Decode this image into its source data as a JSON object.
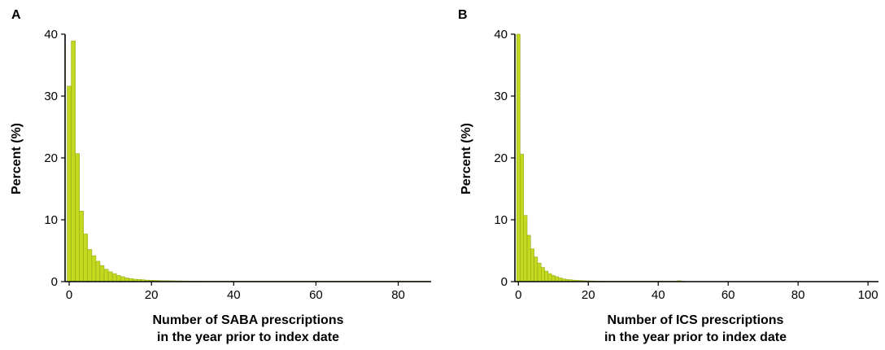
{
  "chart_data": [
    {
      "type": "bar",
      "panel_label": "A",
      "xlabel": [
        "Number of SABA prescriptions",
        "in the year prior to index date"
      ],
      "ylabel": "Percent (%)",
      "xlim": [
        -1,
        88
      ],
      "ylim": [
        0,
        40
      ],
      "xticks": [
        0,
        20,
        40,
        60,
        80
      ],
      "yticks": [
        0,
        10,
        20,
        30,
        40
      ],
      "x": [
        0,
        1,
        2,
        3,
        4,
        5,
        6,
        7,
        8,
        9,
        10,
        11,
        12,
        13,
        14,
        15,
        16,
        17,
        18,
        19,
        20,
        21,
        22,
        23,
        24,
        25,
        26,
        27,
        28,
        29,
        30,
        31,
        32,
        33,
        34,
        35,
        36,
        37,
        38,
        39,
        40,
        41,
        42,
        43,
        44,
        45,
        46,
        47,
        48,
        49,
        50,
        51,
        52,
        53,
        54,
        55,
        56,
        57,
        58,
        59,
        60,
        61,
        62,
        63,
        64,
        65,
        66,
        67,
        68,
        69,
        70,
        71,
        72,
        73,
        74,
        75,
        76,
        77,
        78,
        79,
        80,
        81,
        82,
        83,
        84,
        85,
        86,
        87
      ],
      "values": [
        31.6,
        38.9,
        20.7,
        11.4,
        7.7,
        5.2,
        4.2,
        3.3,
        2.6,
        2.0,
        1.6,
        1.3,
        1.0,
        0.8,
        0.6,
        0.5,
        0.4,
        0.35,
        0.3,
        0.25,
        0.22,
        0.2,
        0.18,
        0.16,
        0.15,
        0.14,
        0.13,
        0.12,
        0.11,
        0.1,
        0.1,
        0.09,
        0.09,
        0.08,
        0.08,
        0.07,
        0.07,
        0.07,
        0.06,
        0.06,
        0.06,
        0.05,
        0.05,
        0.05,
        0.05,
        0.04,
        0.04,
        0.04,
        0.04,
        0.04,
        0.03,
        0.03,
        0.03,
        0.03,
        0.03,
        0.03,
        0.03,
        0.02,
        0.02,
        0.02,
        0.02,
        0.02,
        0.08,
        0.02,
        0.02,
        0.02,
        0.02,
        0.02,
        0.02,
        0.04,
        0.02,
        0.02,
        0.02,
        0.02,
        0.02,
        0.02,
        0.02,
        0.02,
        0.02,
        0.02,
        0.02,
        0.02,
        0.02,
        0.02,
        0.02,
        0.02,
        0.02,
        0.05
      ]
    },
    {
      "type": "bar",
      "panel_label": "B",
      "xlabel": [
        "Number of ICS prescriptions",
        "in the year prior to index date"
      ],
      "ylabel": "Percent (%)",
      "xlim": [
        -1,
        103
      ],
      "ylim": [
        0,
        40
      ],
      "xticks": [
        0,
        20,
        40,
        60,
        80,
        100
      ],
      "yticks": [
        0,
        10,
        20,
        30,
        40
      ],
      "x": [
        0,
        1,
        2,
        3,
        4,
        5,
        6,
        7,
        8,
        9,
        10,
        11,
        12,
        13,
        14,
        15,
        16,
        17,
        18,
        19,
        20,
        21,
        22,
        23,
        24,
        25,
        26,
        27,
        28,
        29,
        30,
        31,
        32,
        33,
        34,
        35,
        36,
        37,
        38,
        39,
        40,
        41,
        42,
        43,
        44,
        45,
        46,
        47
      ],
      "values": [
        40.0,
        20.6,
        10.7,
        7.5,
        5.3,
        4.0,
        3.0,
        2.3,
        1.7,
        1.3,
        1.0,
        0.8,
        0.6,
        0.45,
        0.35,
        0.3,
        0.25,
        0.2,
        0.18,
        0.15,
        0.13,
        0.12,
        0.1,
        0.1,
        0.09,
        0.08,
        0.08,
        0.07,
        0.07,
        0.06,
        0.06,
        0.05,
        0.05,
        0.05,
        0.05,
        0.04,
        0.04,
        0.04,
        0.04,
        0.04,
        0.04,
        0.03,
        0.03,
        0.03,
        0.03,
        0.03,
        0.15,
        0.03
      ]
    }
  ]
}
